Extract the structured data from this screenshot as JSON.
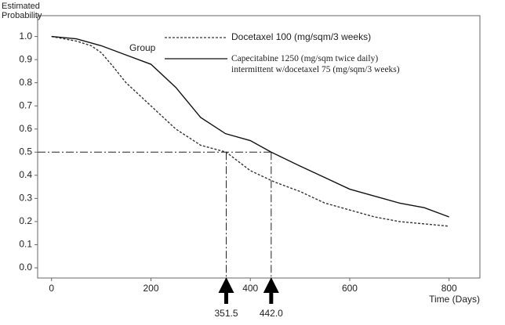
{
  "chart_data": {
    "type": "line",
    "y_label": "Estimated Probability",
    "x_label": "Time (Days)",
    "legend_title": "Group",
    "xlim": [
      -28,
      862
    ],
    "ylim": [
      -0.044,
      1.09
    ],
    "xticks": [
      0,
      200,
      400,
      600,
      800
    ],
    "yticks": [
      {
        "value": 0,
        "label": "0.0"
      },
      0.1,
      0.2,
      0.3,
      0.4,
      0.5,
      0.6,
      0.7,
      0.8,
      0.9,
      {
        "value": 1,
        "label": "1.0"
      }
    ],
    "median_level": 0.5,
    "medians": [
      351.5,
      {
        "value": 442,
        "label": "442.0"
      }
    ],
    "series": [
      {
        "name": "Docetaxel 100 (mg/sqm/3 weeks)",
        "color": "#333333",
        "dash": true,
        "x": [
          0,
          50,
          80,
          100,
          120,
          150,
          200,
          250,
          300,
          351.5,
          400,
          450,
          500,
          550,
          600,
          650,
          700,
          750,
          800
        ],
        "values": [
          1.0,
          0.98,
          0.96,
          0.93,
          0.88,
          0.8,
          0.7,
          0.6,
          0.53,
          0.5,
          0.42,
          0.37,
          0.33,
          0.28,
          0.25,
          0.22,
          0.2,
          0.19,
          0.18
        ]
      },
      {
        "name": "Capecitabine 1250 (mg/sqm twice daily) intermittent w/docetaxel 75 (mg/sqm/3 weeks)",
        "color": "#111111",
        "dash": false,
        "x": [
          0,
          50,
          100,
          150,
          200,
          250,
          300,
          350,
          400,
          442,
          500,
          550,
          600,
          650,
          700,
          750,
          800
        ],
        "values": [
          1.0,
          0.99,
          0.96,
          0.92,
          0.88,
          0.78,
          0.65,
          0.58,
          0.55,
          0.5,
          0.44,
          0.39,
          0.34,
          0.31,
          0.28,
          0.26,
          0.22
        ]
      }
    ]
  }
}
